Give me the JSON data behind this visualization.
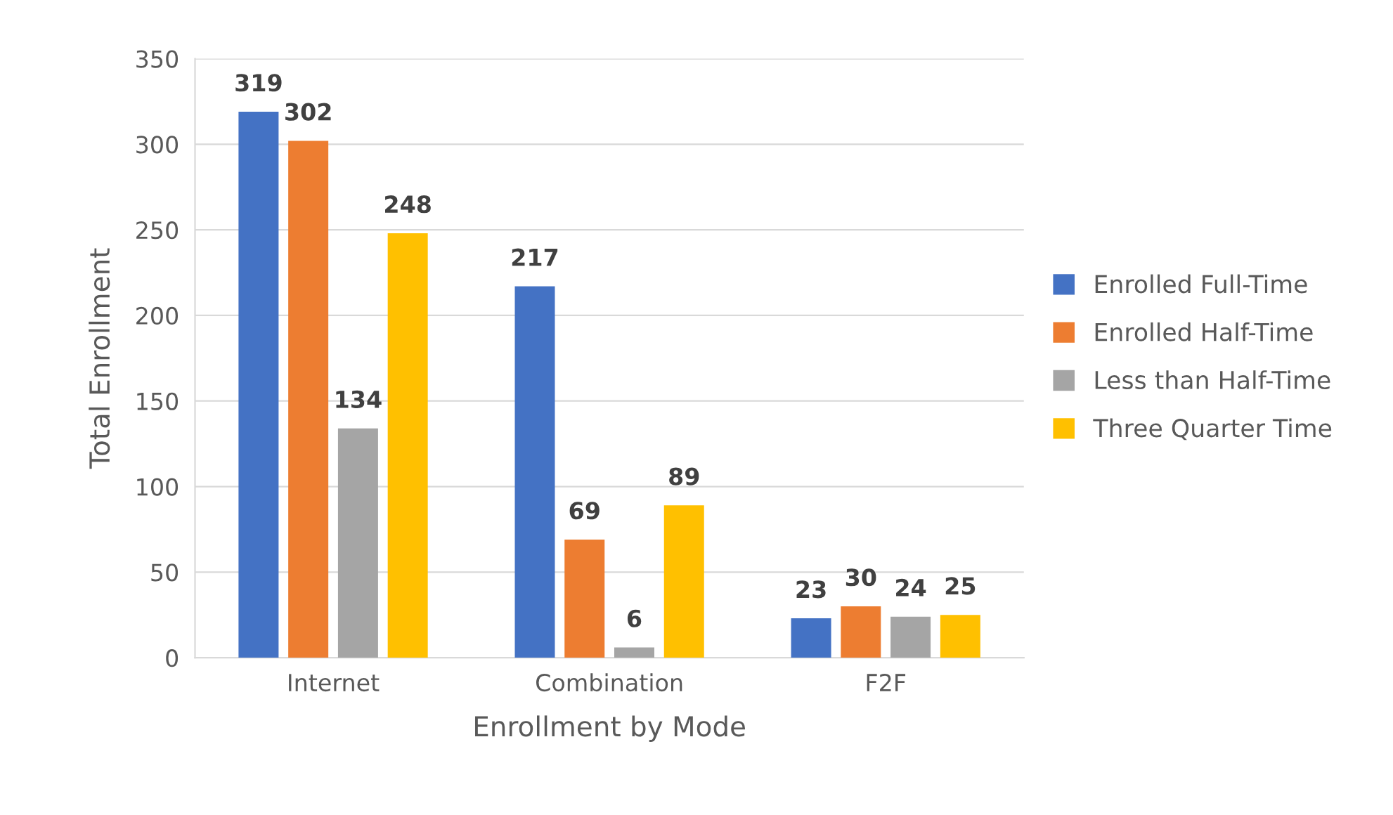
{
  "chart_data": {
    "type": "bar",
    "xlabel": "Enrollment by Mode",
    "ylabel": "Total Enrollment",
    "categories": [
      "Internet",
      "Combination",
      "F2F"
    ],
    "series": [
      {
        "name": "Enrolled Full-Time",
        "color": "#4472c4",
        "values": [
          319,
          217,
          23
        ]
      },
      {
        "name": "Enrolled Half-Time",
        "color": "#ed7d31",
        "values": [
          302,
          69,
          30
        ]
      },
      {
        "name": "Less than Half-Time",
        "color": "#a5a5a5",
        "values": [
          134,
          6,
          24
        ]
      },
      {
        "name": "Three Quarter Time",
        "color": "#ffc000",
        "values": [
          248,
          89,
          25
        ]
      }
    ],
    "ylim": [
      0,
      350
    ],
    "yticks": [
      0,
      50,
      100,
      150,
      200,
      250,
      300,
      350
    ],
    "grid": "y",
    "legend": "right",
    "data_labels": true
  }
}
